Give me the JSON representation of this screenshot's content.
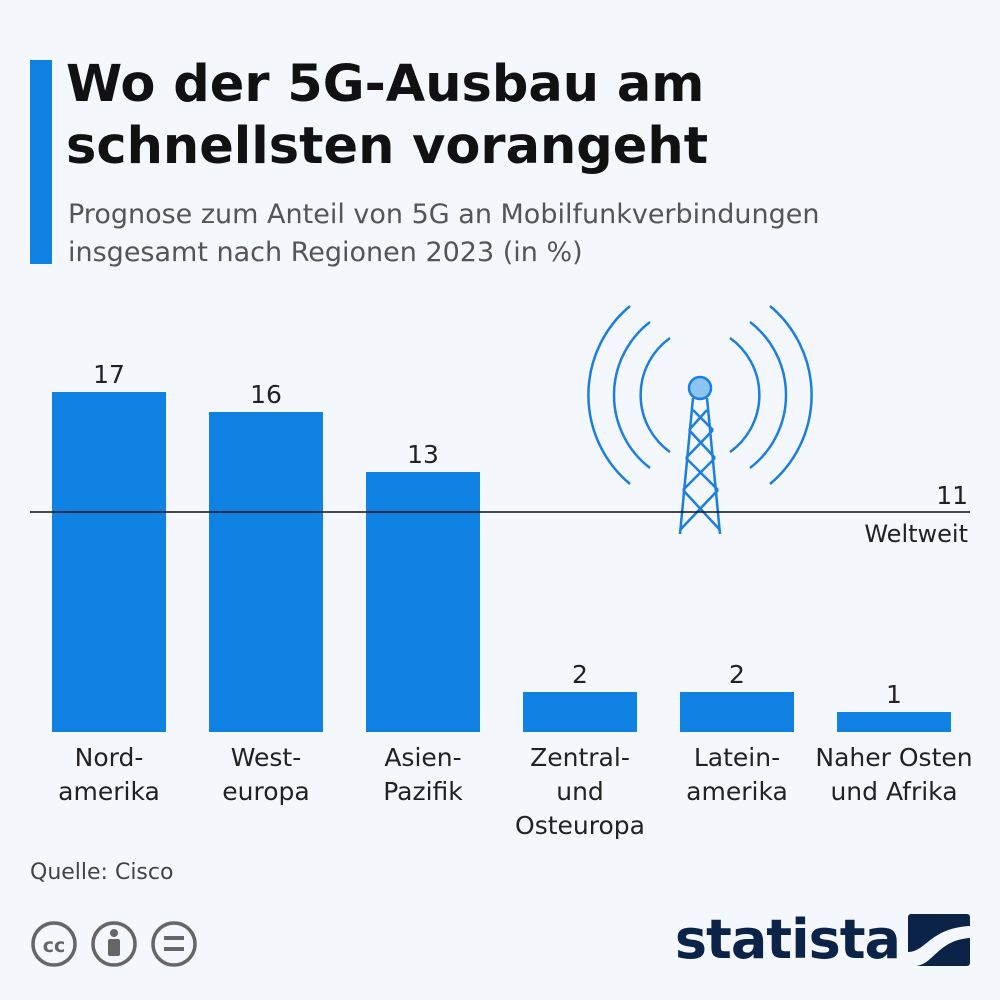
{
  "header": {
    "title": "Wo der 5G-Ausbau am schnellsten vorangeht",
    "subtitle": "Prognose zum Anteil von 5G an Mobilfunkverbindungen insgesamt nach Regionen 2023 (in %)"
  },
  "chart_data": {
    "type": "bar",
    "categories": [
      [
        "Nord-",
        "amerika"
      ],
      [
        "West-",
        "europa"
      ],
      [
        "Asien-",
        "Pazifik"
      ],
      [
        "Zentral-",
        "und",
        "Osteuropa"
      ],
      [
        "Latein-",
        "amerika"
      ],
      [
        "Naher Osten",
        "und Afrika"
      ]
    ],
    "values": [
      17,
      16,
      13,
      2,
      2,
      1
    ],
    "data_labels": [
      "17",
      "16",
      "13",
      "2",
      "2",
      "1"
    ],
    "ylim": [
      0,
      17
    ],
    "grid": false,
    "reference_line": {
      "value": 11,
      "value_label": "11",
      "label": "Weltweit"
    },
    "bar_color": "#0f82e4",
    "icon": "cell-tower-icon"
  },
  "footer": {
    "source": "Quelle: Cisco",
    "license_icons": [
      "cc-icon",
      "by-icon",
      "nd-icon"
    ],
    "logo_text": "statista"
  }
}
